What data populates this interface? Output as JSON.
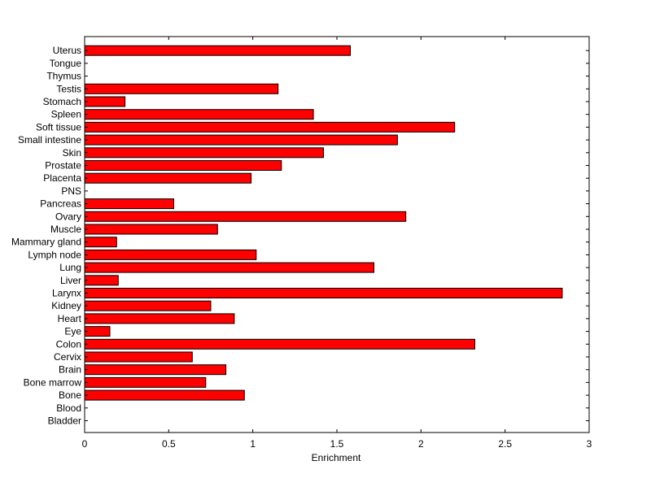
{
  "chart_data": {
    "type": "bar",
    "orientation": "horizontal",
    "title": "",
    "xlabel": "Enrichment",
    "ylabel": "",
    "xlim": [
      0,
      3
    ],
    "x_ticks": [
      "0",
      "0.5",
      "1",
      "1.5",
      "2",
      "2.5",
      "3"
    ],
    "grid": false,
    "bar_color": "#ff0000",
    "bar_edge_color": "#000000",
    "categories": [
      "Bladder",
      "Blood",
      "Bone",
      "Bone marrow",
      "Brain",
      "Cervix",
      "Colon",
      "Eye",
      "Heart",
      "Kidney",
      "Larynx",
      "Liver",
      "Lung",
      "Lymph node",
      "Mammary gland",
      "Muscle",
      "Ovary",
      "Pancreas",
      "PNS",
      "Placenta",
      "Prostate",
      "Skin",
      "Small intestine",
      "Soft tissue",
      "Spleen",
      "Stomach",
      "Testis",
      "Thymus",
      "Tongue",
      "Uterus"
    ],
    "values": [
      0,
      0,
      0.95,
      0.72,
      0.84,
      0.64,
      2.32,
      0.15,
      0.89,
      0.75,
      2.84,
      0.2,
      1.72,
      1.02,
      0.19,
      0.79,
      1.91,
      0.53,
      0,
      0.99,
      1.17,
      1.42,
      1.86,
      2.2,
      1.36,
      0.24,
      1.15,
      0,
      0,
      1.58
    ]
  }
}
